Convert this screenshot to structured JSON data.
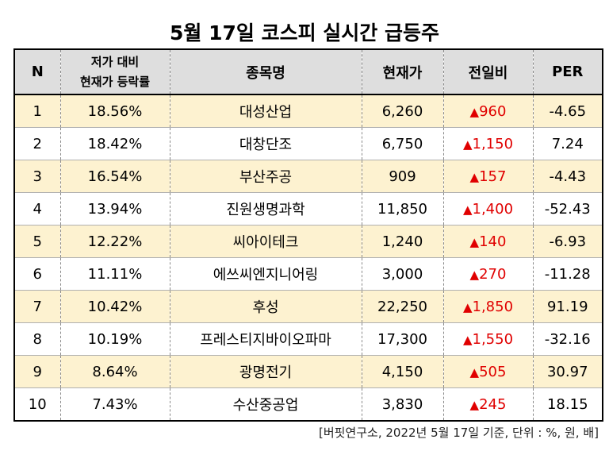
{
  "title": "5월 17일 코스피 실시간 급등주",
  "headers": {
    "n": "N",
    "rate_line1": "저가 대비",
    "rate_line2": "현재가 등락률",
    "name": "종목명",
    "price": "현재가",
    "change": "전일비",
    "per": "PER"
  },
  "rows": [
    {
      "n": "1",
      "rate": "18.56%",
      "name": "대성산업",
      "price": "6,260",
      "change": "960",
      "per": "-4.65"
    },
    {
      "n": "2",
      "rate": "18.42%",
      "name": "대창단조",
      "price": "6,750",
      "change": "1,150",
      "per": "7.24"
    },
    {
      "n": "3",
      "rate": "16.54%",
      "name": "부산주공",
      "price": "909",
      "change": "157",
      "per": "-4.43"
    },
    {
      "n": "4",
      "rate": "13.94%",
      "name": "진원생명과학",
      "price": "11,850",
      "change": "1,400",
      "per": "-52.43"
    },
    {
      "n": "5",
      "rate": "12.22%",
      "name": "씨아이테크",
      "price": "1,240",
      "change": "140",
      "per": "-6.93"
    },
    {
      "n": "6",
      "rate": "11.11%",
      "name": "에쓰씨엔지니어링",
      "price": "3,000",
      "change": "270",
      "per": "-11.28"
    },
    {
      "n": "7",
      "rate": "10.42%",
      "name": "후성",
      "price": "22,250",
      "change": "1,850",
      "per": "91.19"
    },
    {
      "n": "8",
      "rate": "10.19%",
      "name": "프레스티지바이오파마",
      "price": "17,300",
      "change": "1,550",
      "per": "-32.16"
    },
    {
      "n": "9",
      "rate": "8.64%",
      "name": "광명전기",
      "price": "4,150",
      "change": "505",
      "per": "30.97"
    },
    {
      "n": "10",
      "rate": "7.43%",
      "name": "수산중공업",
      "price": "3,830",
      "change": "245",
      "per": "18.15"
    }
  ],
  "up_symbol": "▲",
  "up_color": "#e00000",
  "source": "[버핏연구소, 2022년 5월 17일 기준, 단위 : %, 원, 배]"
}
